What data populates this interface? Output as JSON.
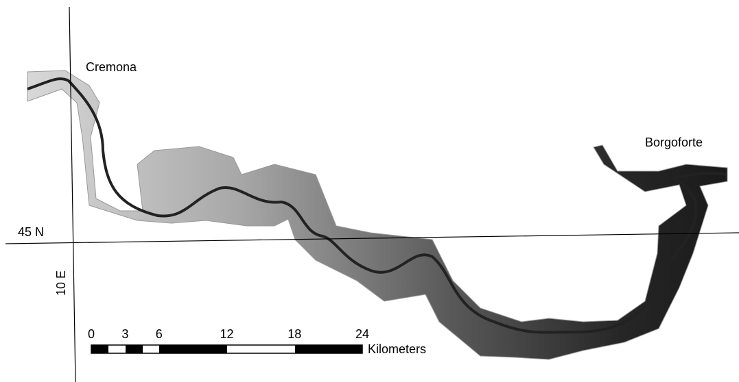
{
  "places": {
    "upstream": "Cremona",
    "downstream": "Borgoforte"
  },
  "graticule": {
    "latitude": "45 N",
    "longitude": "10 E"
  },
  "scale_bar": {
    "ticks": [
      0,
      3,
      6,
      12,
      18,
      24
    ],
    "unit": "Kilometers"
  }
}
